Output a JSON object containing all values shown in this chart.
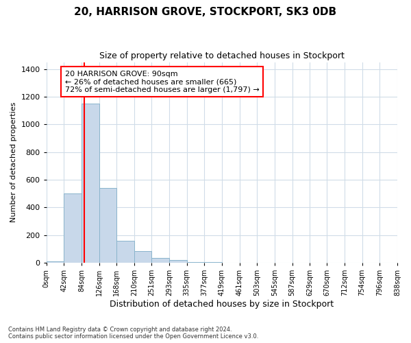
{
  "title": "20, HARRISON GROVE, STOCKPORT, SK3 0DB",
  "subtitle": "Size of property relative to detached houses in Stockport",
  "xlabel": "Distribution of detached houses by size in Stockport",
  "ylabel": "Number of detached properties",
  "footnote1": "Contains HM Land Registry data © Crown copyright and database right 2024.",
  "footnote2": "Contains public sector information licensed under the Open Government Licence v3.0.",
  "annotation_line1": "20 HARRISON GROVE: 90sqm",
  "annotation_line2": "← 26% of detached houses are smaller (665)",
  "annotation_line3": "72% of semi-detached houses are larger (1,797) →",
  "property_size": 90,
  "bar_color": "#c8d8ea",
  "bar_edge_color": "#8ab4cc",
  "vline_color": "red",
  "ylim": [
    0,
    1450
  ],
  "yticks": [
    0,
    200,
    400,
    600,
    800,
    1000,
    1200,
    1400
  ],
  "bin_edges": [
    0,
    42,
    84,
    126,
    168,
    210,
    251,
    293,
    335,
    377,
    419,
    461,
    503,
    545,
    587,
    629,
    670,
    712,
    754,
    796,
    838
  ],
  "bin_labels": [
    "0sqm",
    "42sqm",
    "84sqm",
    "126sqm",
    "168sqm",
    "210sqm",
    "251sqm",
    "293sqm",
    "335sqm",
    "377sqm",
    "419sqm",
    "461sqm",
    "503sqm",
    "545sqm",
    "587sqm",
    "629sqm",
    "670sqm",
    "712sqm",
    "754sqm",
    "796sqm",
    "838sqm"
  ],
  "bar_heights": [
    10,
    500,
    1150,
    540,
    160,
    85,
    35,
    20,
    5,
    3,
    2,
    1,
    0,
    0,
    0,
    0,
    0,
    0,
    0,
    0
  ],
  "background_color": "#ffffff",
  "grid_color": "#d0dce8",
  "title_fontsize": 11,
  "subtitle_fontsize": 9,
  "ylabel_fontsize": 8,
  "xlabel_fontsize": 9
}
